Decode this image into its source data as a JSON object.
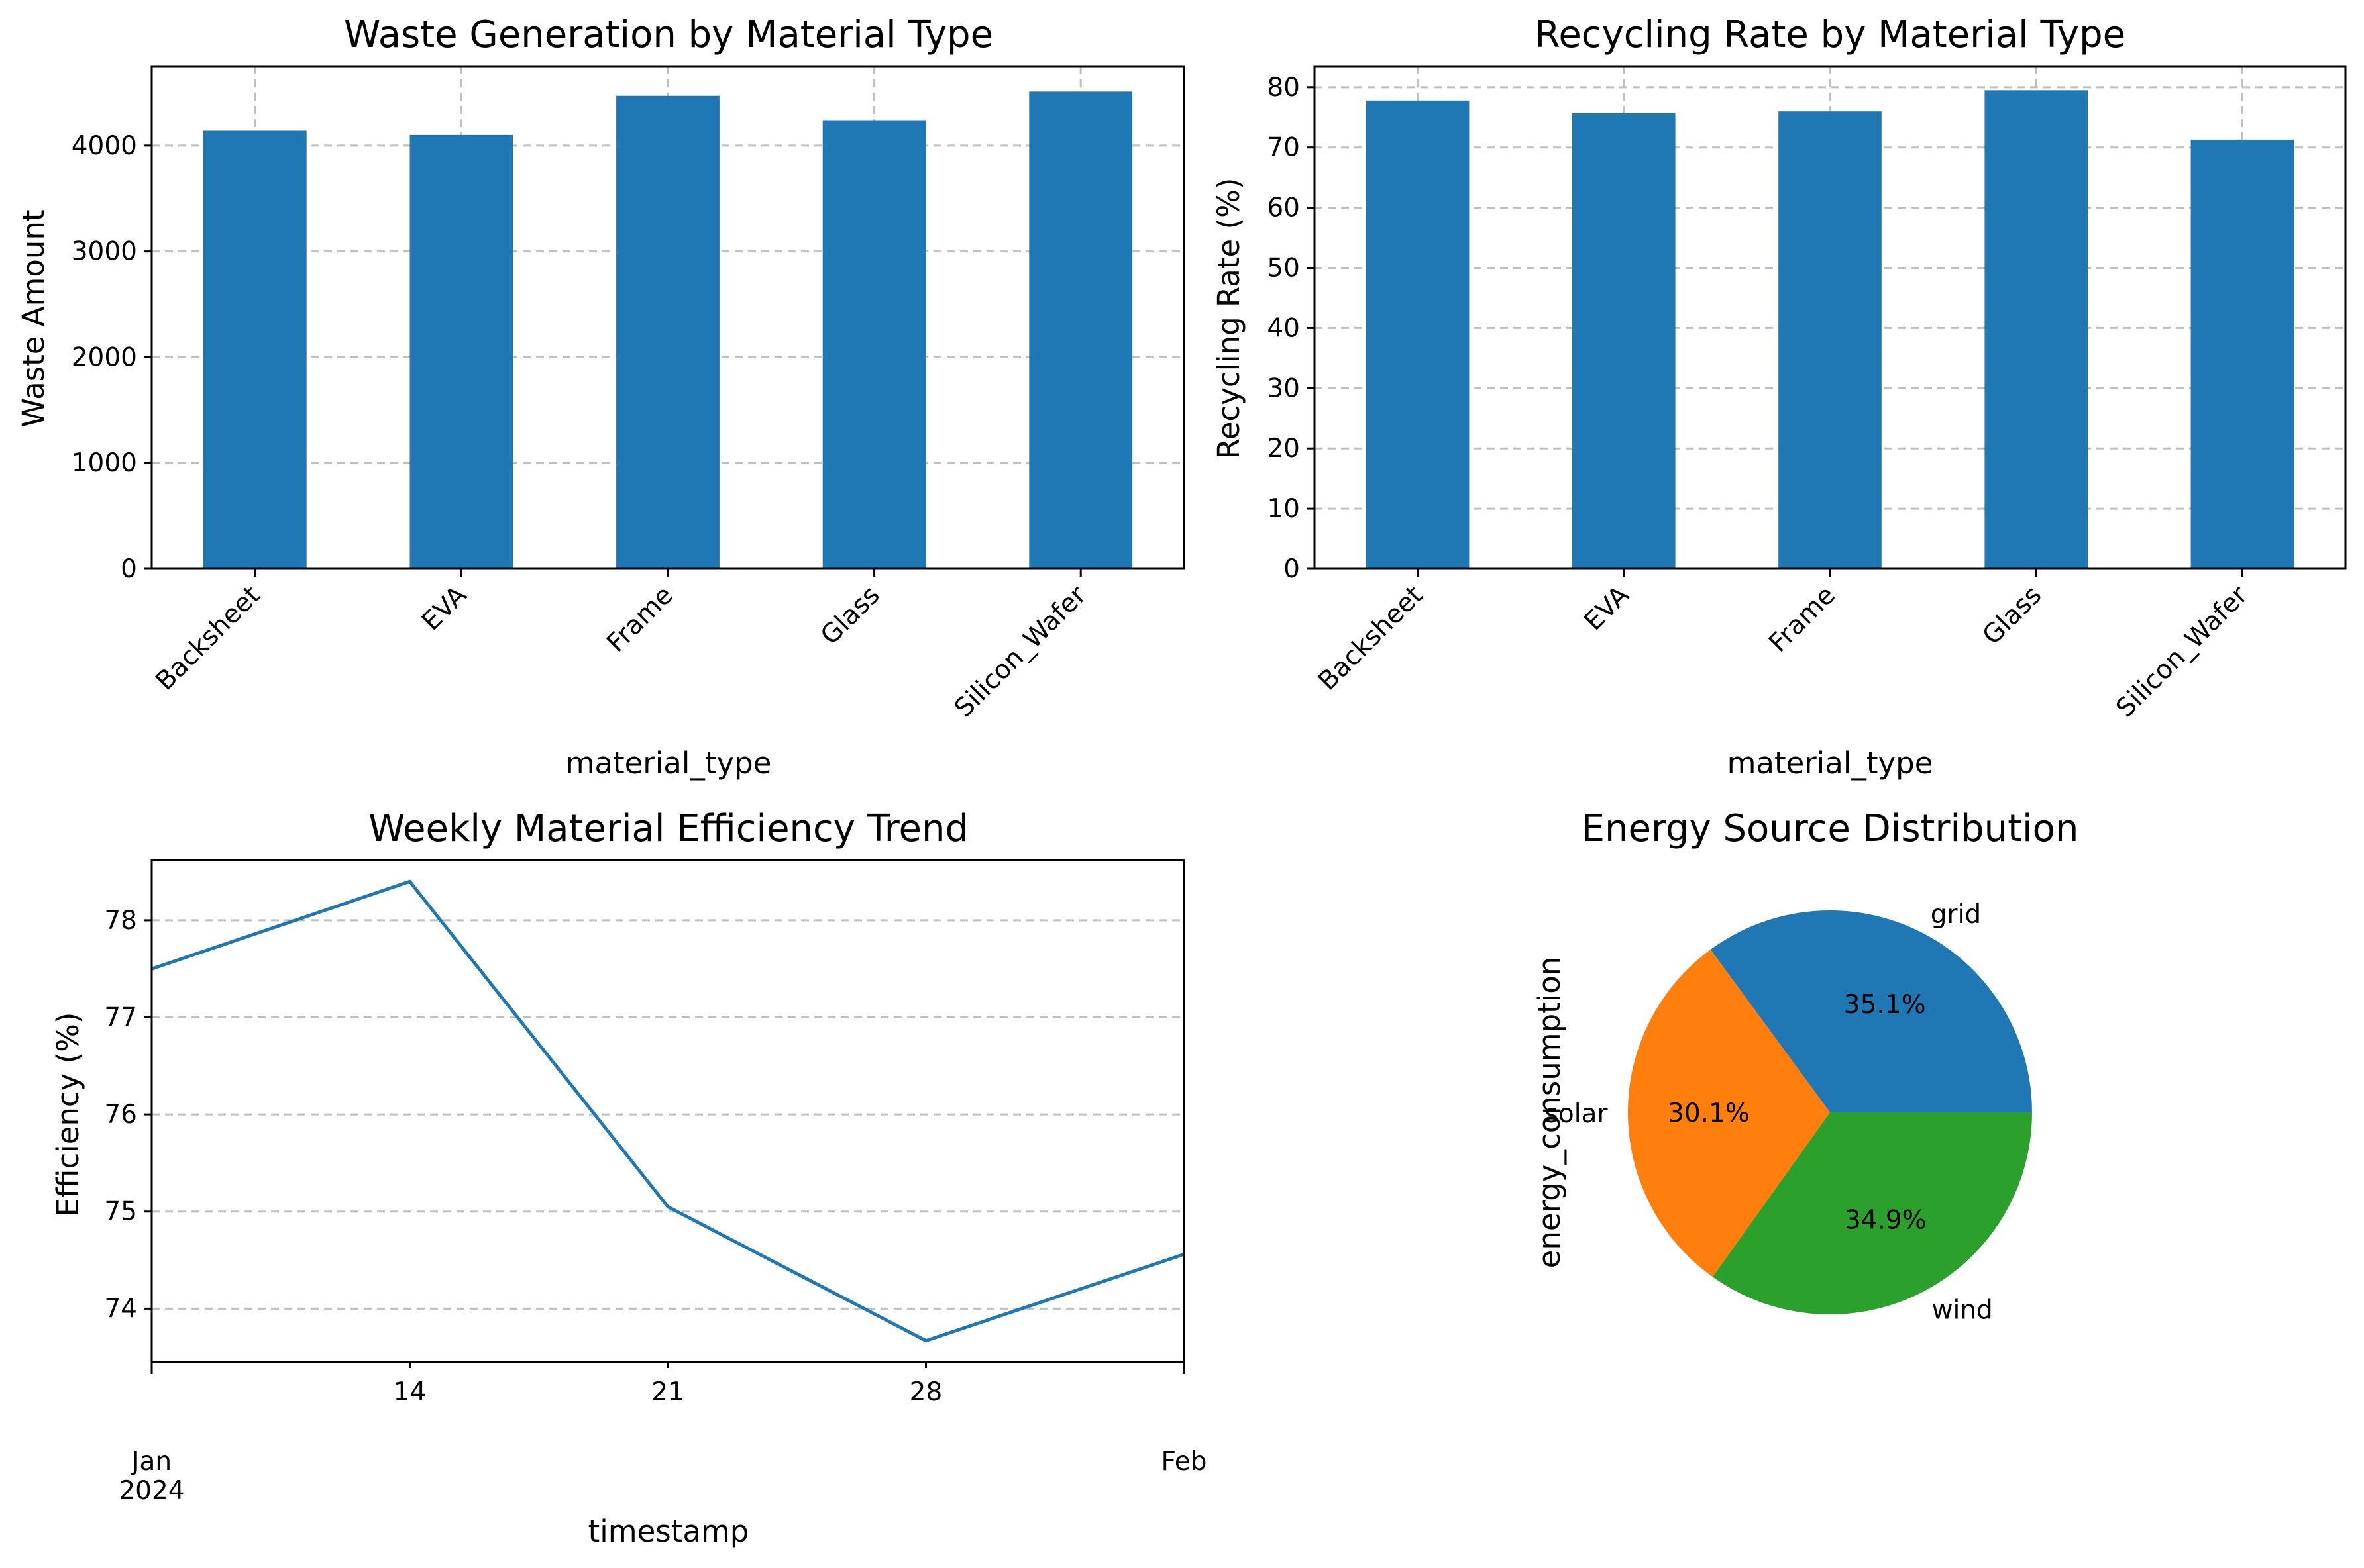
{
  "chart_data": [
    {
      "type": "bar",
      "title": "Waste Generation by Material Type",
      "xlabel": "material_type",
      "ylabel": "Waste Amount",
      "categories": [
        "Backsheet",
        "EVA",
        "Frame",
        "Glass",
        "Silicon_Wafer"
      ],
      "values": [
        4140,
        4100,
        4470,
        4240,
        4510
      ],
      "ylim": [
        0,
        4750
      ],
      "yticks": [
        "0",
        "1000",
        "2000",
        "3000",
        "4000"
      ],
      "grid": true,
      "color": "#1f77b4"
    },
    {
      "type": "bar",
      "title": "Recycling Rate by Material Type",
      "xlabel": "material_type",
      "ylabel": "Recycling Rate (%)",
      "categories": [
        "Backsheet",
        "EVA",
        "Frame",
        "Glass",
        "Silicon_Wafer"
      ],
      "values": [
        77.8,
        75.7,
        76.0,
        79.5,
        71.3
      ],
      "ylim": [
        0,
        83.5
      ],
      "yticks": [
        "0",
        "10",
        "20",
        "30",
        "40",
        "50",
        "60",
        "70",
        "80"
      ],
      "grid": true,
      "color": "#1f77b4"
    },
    {
      "type": "line",
      "title": "Weekly Material Efficiency Trend",
      "xlabel": "timestamp",
      "ylabel": "Efficiency (%)",
      "x": [
        "2024-01-07",
        "2024-01-14",
        "2024-01-21",
        "2024-01-28",
        "2024-02-04"
      ],
      "y": [
        77.5,
        78.4,
        75.05,
        73.67,
        74.56
      ],
      "xlim": [
        "2024-01-07",
        "2024-02-04"
      ],
      "ylim": [
        73.45,
        78.62
      ],
      "yticks": [
        "74",
        "75",
        "76",
        "77",
        "78"
      ],
      "xticks_minor": [
        "14",
        "21",
        "28"
      ],
      "xticks_major": [
        {
          "line1": "Jan",
          "line2": "2024"
        },
        {
          "line1": "Feb",
          "line2": ""
        }
      ],
      "grid": true,
      "color": "#1f77b4"
    },
    {
      "type": "pie",
      "title": "Energy Source Distribution",
      "ylabel": "energy_consumption",
      "labels": [
        "grid",
        "solar",
        "wind"
      ],
      "values": [
        35.1,
        30.1,
        34.9
      ],
      "autopct": [
        "35.1%",
        "30.1%",
        "34.9%"
      ],
      "colors": [
        "#1f77b4",
        "#ff7f0e",
        "#2ca02c"
      ]
    }
  ]
}
